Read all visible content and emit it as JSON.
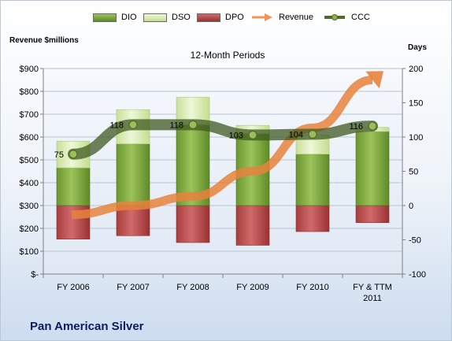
{
  "company_name": "Pan American Silver",
  "chart_data": {
    "type": "bar",
    "title": "12-Month Periods",
    "ylabel_left": "Revenue $millions",
    "ylabel_right": "Days",
    "categories": [
      "FY 2006",
      "FY 2007",
      "FY 2008",
      "FY 2009",
      "FY 2010",
      "FY & TTM 2011"
    ],
    "left_axis": {
      "min": 0,
      "max": 900,
      "step": 100,
      "tick_labels": [
        "$-",
        "$100",
        "$200",
        "$300",
        "$400",
        "$500",
        "$600",
        "$700",
        "$800",
        "$900"
      ]
    },
    "right_axis": {
      "min": -100,
      "max": 200,
      "step": 50,
      "tick_labels": [
        "-100",
        "-50",
        "0",
        "50",
        "100",
        "150",
        "200"
      ]
    },
    "series": [
      {
        "name": "DIO",
        "type": "bar",
        "axis": "right",
        "values": [
          55,
          90,
          118,
          105,
          75,
          108
        ],
        "color": "#7aa63a"
      },
      {
        "name": "DSO",
        "type": "bar",
        "axis": "right",
        "values": [
          39,
          50,
          40,
          12,
          28,
          6
        ],
        "color": "#d4e8a8"
      },
      {
        "name": "DPO",
        "type": "bar",
        "axis": "right",
        "values": [
          -49,
          -44,
          -54,
          -58,
          -38,
          -25
        ],
        "color": "#b94d4d"
      },
      {
        "name": "Revenue",
        "type": "arrow",
        "axis": "left",
        "values": [
          260,
          300,
          340,
          450,
          640,
          850
        ],
        "color": "#f0955a"
      },
      {
        "name": "CCC",
        "type": "line",
        "axis": "right",
        "values": [
          75,
          118,
          118,
          103,
          104,
          116
        ],
        "data_labels": [
          "75",
          "118",
          "118",
          "103",
          "104",
          "116"
        ],
        "color": "#4f6a2a"
      }
    ],
    "grid": true,
    "legend_position": "top"
  }
}
